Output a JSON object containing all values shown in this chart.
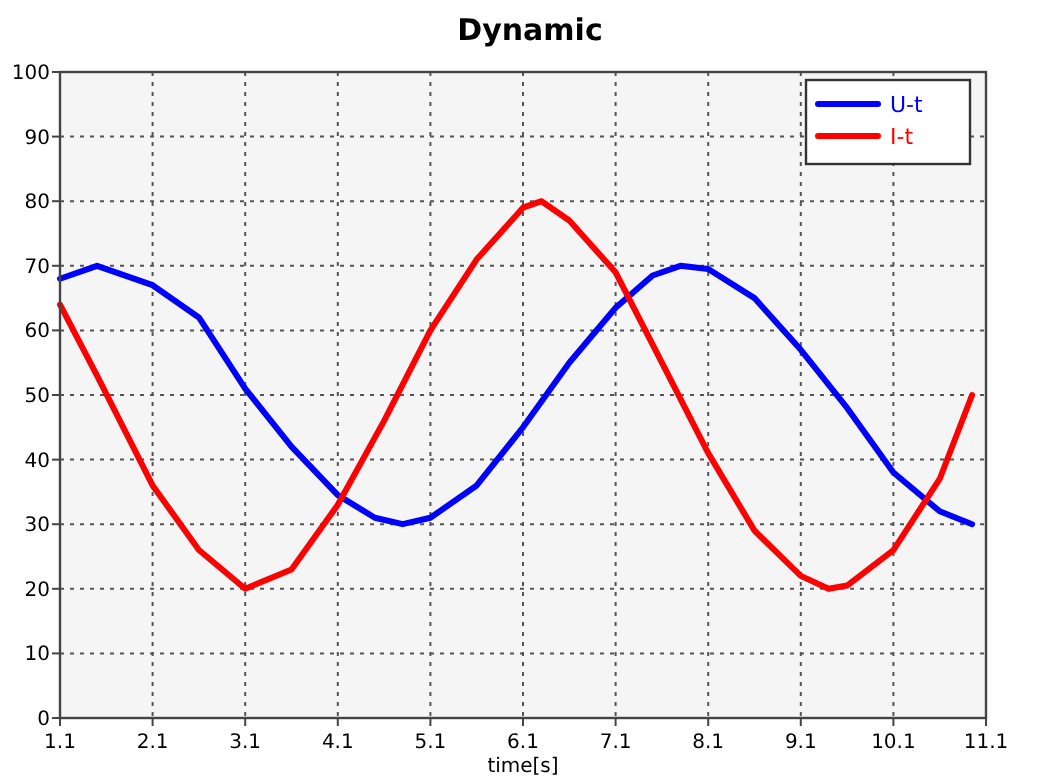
{
  "chart_data": {
    "type": "line",
    "title": "Dynamic",
    "xlabel": "time[s]",
    "xlim": [
      1.1,
      11.1
    ],
    "xticks": [
      1.1,
      2.1,
      3.1,
      4.1,
      5.1,
      6.1,
      7.1,
      8.1,
      9.1,
      10.1,
      11.1
    ],
    "ylim": [
      0,
      100
    ],
    "yticks": [
      0,
      10,
      20,
      30,
      40,
      50,
      60,
      70,
      80,
      90,
      100
    ],
    "grid": true,
    "legend": "top right",
    "marker": "none",
    "line_style": "solid",
    "series": [
      {
        "name": "U-t",
        "color": "#0000ff",
        "x": [
          1.1,
          1.5,
          2.1,
          2.6,
          3.1,
          3.6,
          4.1,
          4.5,
          4.8,
          5.1,
          5.6,
          6.1,
          6.6,
          7.1,
          7.5,
          7.8,
          8.1,
          8.6,
          9.1,
          9.6,
          10.1,
          10.6,
          10.95
        ],
        "values": [
          68,
          70,
          67,
          62,
          51,
          42,
          34.5,
          31,
          30,
          31,
          36,
          45,
          55,
          63.5,
          68.5,
          70,
          69.5,
          65,
          57,
          48,
          38,
          32,
          30
        ]
      },
      {
        "name": "I-t",
        "color": "#ff0000",
        "x": [
          1.1,
          1.5,
          2.1,
          2.6,
          3.1,
          3.6,
          4.1,
          4.6,
          5.1,
          5.6,
          6.1,
          6.3,
          6.6,
          7.1,
          7.6,
          8.1,
          8.6,
          9.1,
          9.4,
          9.6,
          10.1,
          10.6,
          10.95
        ],
        "values": [
          64,
          53,
          36,
          26,
          20,
          23,
          33,
          46,
          60,
          71,
          79,
          80,
          77,
          69,
          55,
          41,
          29,
          22,
          20,
          20.5,
          26,
          37,
          50
        ]
      }
    ]
  }
}
